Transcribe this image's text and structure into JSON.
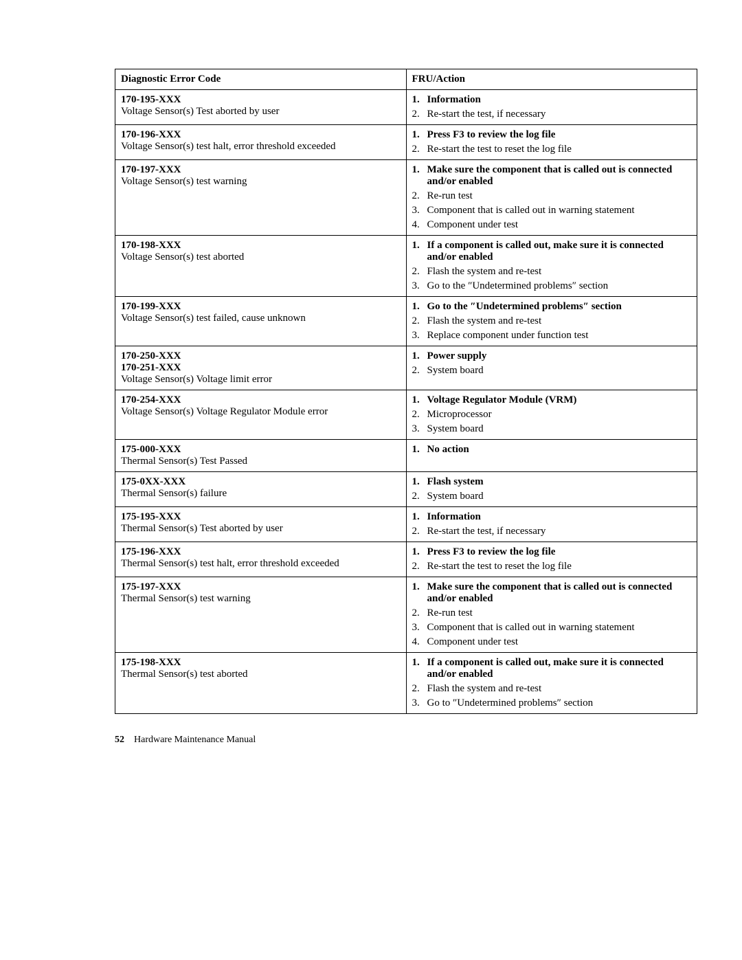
{
  "table": {
    "headers": {
      "left": "Diagnostic Error Code",
      "right": "FRU/Action"
    },
    "rows": [
      {
        "codes": [
          "170-195-XXX"
        ],
        "desc": "Voltage Sensor(s) Test aborted by user",
        "actions": [
          {
            "text": "Information",
            "bold": true
          },
          {
            "text": "Re-start the test, if necessary",
            "bold": false
          }
        ]
      },
      {
        "codes": [
          "170-196-XXX"
        ],
        "desc": "Voltage Sensor(s) test halt, error threshold exceeded",
        "actions": [
          {
            "text": "Press F3 to review the log file",
            "bold": true
          },
          {
            "text": "Re-start the test to reset the log file",
            "bold": false
          }
        ]
      },
      {
        "codes": [
          "170-197-XXX"
        ],
        "desc": "Voltage Sensor(s) test warning",
        "actions": [
          {
            "text": "Make sure the component that is called out is connected and/or enabled",
            "bold": true
          },
          {
            "text": "Re-run test",
            "bold": false
          },
          {
            "text": "Component that is called out in warning statement",
            "bold": false
          },
          {
            "text": "Component under test",
            "bold": false
          }
        ]
      },
      {
        "codes": [
          "170-198-XXX"
        ],
        "desc": "Voltage Sensor(s) test aborted",
        "actions": [
          {
            "text": "If a component is called out, make sure it is connected and/or enabled",
            "bold": true
          },
          {
            "text": "Flash the system and re-test",
            "bold": false
          },
          {
            "text": "Go to the ″Undetermined problems″ section",
            "bold": false
          }
        ]
      },
      {
        "codes": [
          "170-199-XXX"
        ],
        "desc": "Voltage Sensor(s) test failed, cause unknown",
        "actions": [
          {
            "text": "Go to the ″Undetermined problems″ section",
            "bold": true
          },
          {
            "text": "Flash the system and re-test",
            "bold": false
          },
          {
            "text": "Replace component under function test",
            "bold": false
          }
        ]
      },
      {
        "codes": [
          "170-250-XXX",
          "170-251-XXX"
        ],
        "desc": "Voltage Sensor(s) Voltage limit error",
        "actions": [
          {
            "text": "Power supply",
            "bold": true
          },
          {
            "text": "System board",
            "bold": false
          }
        ]
      },
      {
        "codes": [
          "170-254-XXX"
        ],
        "desc": "Voltage Sensor(s) Voltage Regulator Module error",
        "actions": [
          {
            "text": "Voltage Regulator Module (VRM)",
            "bold": true
          },
          {
            "text": "Microprocessor",
            "bold": false
          },
          {
            "text": "System board",
            "bold": false
          }
        ]
      },
      {
        "codes": [
          "175-000-XXX"
        ],
        "desc": "Thermal Sensor(s) Test Passed",
        "actions": [
          {
            "text": "No action",
            "bold": true
          }
        ]
      },
      {
        "codes": [
          "175-0XX-XXX"
        ],
        "desc": "Thermal Sensor(s) failure",
        "actions": [
          {
            "text": "Flash system",
            "bold": true
          },
          {
            "text": "System board",
            "bold": false
          }
        ]
      },
      {
        "codes": [
          "175-195-XXX"
        ],
        "desc": "Thermal Sensor(s) Test aborted by user",
        "actions": [
          {
            "text": "Information",
            "bold": true
          },
          {
            "text": "Re-start the test, if necessary",
            "bold": false
          }
        ]
      },
      {
        "codes": [
          "175-196-XXX"
        ],
        "desc": "Thermal Sensor(s) test halt, error threshold exceeded",
        "actions": [
          {
            "text": "Press F3 to review the log file",
            "bold": true
          },
          {
            "text": "Re-start the test to reset the log file",
            "bold": false
          }
        ]
      },
      {
        "codes": [
          "175-197-XXX"
        ],
        "desc": "Thermal Sensor(s) test warning",
        "actions": [
          {
            "text": "Make sure the component that is called out is connected and/or enabled",
            "bold": true
          },
          {
            "text": "Re-run test",
            "bold": false
          },
          {
            "text": "Component that is called out in warning statement",
            "bold": false
          },
          {
            "text": "Component under test",
            "bold": false
          }
        ]
      },
      {
        "codes": [
          "175-198-XXX"
        ],
        "desc": "Thermal Sensor(s) test aborted",
        "actions": [
          {
            "text": "If a component is called out, make sure it is connected and/or enabled",
            "bold": true
          },
          {
            "text": "Flash the system and re-test",
            "bold": false
          },
          {
            "text": "Go to ″Undetermined problems″ section",
            "bold": false
          }
        ]
      }
    ]
  },
  "footer": {
    "page_num": "52",
    "title": "Hardware Maintenance Manual"
  },
  "style": {
    "font_family": "Palatino Linotype, Book Antiqua, Palatino, serif",
    "font_size_body": 15,
    "font_size_footer": 14,
    "text_color": "#000000",
    "background_color": "#ffffff",
    "border_color": "#000000",
    "border_width": 1,
    "left_col_width_pct": 50,
    "right_col_width_pct": 50
  }
}
